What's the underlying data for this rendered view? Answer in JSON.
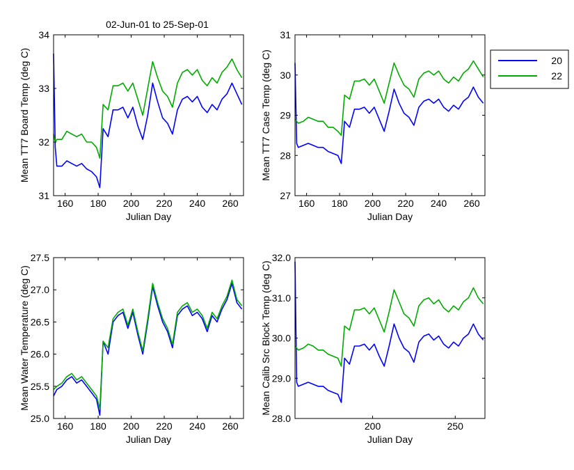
{
  "chart_data": [
    {
      "type": "line",
      "title": "02-Jun-01 to 25-Sep-01",
      "xlabel": "Julian Day",
      "ylabel": "Mean TT7 Board Temp (deg C)",
      "xlim": [
        153,
        268
      ],
      "ylim": [
        31,
        34
      ],
      "xticks": [
        "160",
        "180",
        "200",
        "220",
        "240",
        "260"
      ],
      "yticks": [
        "31",
        "32",
        "33",
        "34"
      ],
      "series": [
        {
          "name": "20",
          "color": "#0000ff",
          "x": [
            153,
            154,
            155,
            158,
            161,
            164,
            167,
            170,
            173,
            176,
            179,
            181,
            183,
            186,
            189,
            192,
            195,
            198,
            201,
            204,
            207,
            210,
            213,
            216,
            219,
            222,
            225,
            228,
            231,
            234,
            237,
            240,
            243,
            246,
            249,
            252,
            255,
            258,
            261,
            264,
            267
          ],
          "y": [
            33.65,
            31.9,
            31.55,
            31.55,
            31.65,
            31.6,
            31.55,
            31.6,
            31.5,
            31.45,
            31.35,
            31.15,
            32.25,
            32.1,
            32.6,
            32.6,
            32.65,
            32.45,
            32.65,
            32.3,
            32.05,
            32.5,
            33.1,
            32.75,
            32.45,
            32.35,
            32.15,
            32.6,
            32.8,
            32.85,
            32.75,
            32.85,
            32.65,
            32.55,
            32.7,
            32.6,
            32.8,
            32.9,
            33.1,
            32.9,
            32.7
          ]
        },
        {
          "name": "22",
          "color": "#00aa00",
          "x": [
            153,
            154,
            155,
            158,
            161,
            164,
            167,
            170,
            173,
            176,
            179,
            181,
            183,
            186,
            189,
            192,
            195,
            198,
            201,
            204,
            207,
            210,
            213,
            216,
            219,
            222,
            225,
            228,
            231,
            234,
            237,
            240,
            243,
            246,
            249,
            252,
            255,
            258,
            261,
            264,
            267
          ],
          "y": [
            32.15,
            32.0,
            32.05,
            32.05,
            32.2,
            32.15,
            32.1,
            32.15,
            32.0,
            32.0,
            31.9,
            31.7,
            32.7,
            32.6,
            33.05,
            33.05,
            33.1,
            32.95,
            33.1,
            32.8,
            32.5,
            33.0,
            33.5,
            33.2,
            32.95,
            32.85,
            32.65,
            33.1,
            33.3,
            33.35,
            33.25,
            33.35,
            33.15,
            33.05,
            33.2,
            33.1,
            33.3,
            33.4,
            33.55,
            33.35,
            33.2
          ]
        }
      ]
    },
    {
      "type": "line",
      "title": "",
      "xlabel": "Julian Day",
      "ylabel": "Mean TT7 Case Temp (deg C)",
      "xlim": [
        153,
        268
      ],
      "ylim": [
        27,
        31
      ],
      "xticks": [
        "160",
        "180",
        "200",
        "220",
        "240",
        "260"
      ],
      "yticks": [
        "27",
        "28",
        "29",
        "30",
        "31"
      ],
      "series": [
        {
          "name": "20",
          "color": "#0000ff",
          "x": [
            153,
            154,
            155,
            158,
            161,
            164,
            167,
            170,
            173,
            176,
            179,
            181,
            183,
            186,
            189,
            192,
            195,
            198,
            201,
            204,
            207,
            210,
            213,
            216,
            219,
            222,
            225,
            228,
            231,
            234,
            237,
            240,
            243,
            246,
            249,
            252,
            255,
            258,
            261,
            264,
            267
          ],
          "y": [
            30.3,
            28.3,
            28.2,
            28.25,
            28.3,
            28.25,
            28.2,
            28.2,
            28.1,
            28.05,
            28.0,
            27.8,
            28.85,
            28.7,
            29.15,
            29.15,
            29.2,
            29.05,
            29.2,
            28.9,
            28.6,
            29.1,
            29.65,
            29.3,
            29.05,
            28.95,
            28.75,
            29.2,
            29.35,
            29.4,
            29.3,
            29.4,
            29.2,
            29.1,
            29.25,
            29.15,
            29.35,
            29.45,
            29.7,
            29.45,
            29.3
          ]
        },
        {
          "name": "22",
          "color": "#00aa00",
          "x": [
            153,
            154,
            155,
            158,
            161,
            164,
            167,
            170,
            173,
            176,
            179,
            181,
            183,
            186,
            189,
            192,
            195,
            198,
            201,
            204,
            207,
            210,
            213,
            216,
            219,
            222,
            225,
            228,
            231,
            234,
            237,
            240,
            243,
            246,
            249,
            252,
            255,
            258,
            261,
            264,
            267
          ],
          "y": [
            28.9,
            28.85,
            28.8,
            28.85,
            28.95,
            28.9,
            28.85,
            28.85,
            28.7,
            28.7,
            28.6,
            28.5,
            29.5,
            29.4,
            29.85,
            29.85,
            29.9,
            29.75,
            29.9,
            29.6,
            29.3,
            29.8,
            30.3,
            30.0,
            29.75,
            29.65,
            29.45,
            29.9,
            30.05,
            30.1,
            30.0,
            30.1,
            29.9,
            29.8,
            29.95,
            29.85,
            30.05,
            30.15,
            30.35,
            30.15,
            29.95
          ]
        }
      ]
    },
    {
      "type": "line",
      "title": "",
      "xlabel": "Julian Day",
      "ylabel": "Mean Water Temperature (deg C)",
      "xlim": [
        153,
        268
      ],
      "ylim": [
        25,
        27.5
      ],
      "xticks": [
        "160",
        "180",
        "200",
        "220",
        "240",
        "260"
      ],
      "yticks": [
        "25.0",
        "25.5",
        "26.0",
        "26.5",
        "27.0",
        "27.5"
      ],
      "series": [
        {
          "name": "20",
          "color": "#0000ff",
          "x": [
            153,
            155,
            158,
            161,
            164,
            167,
            170,
            173,
            176,
            179,
            181,
            183,
            186,
            189,
            192,
            195,
            198,
            201,
            204,
            207,
            210,
            213,
            216,
            219,
            222,
            225,
            228,
            231,
            234,
            237,
            240,
            243,
            246,
            249,
            252,
            255,
            258,
            261,
            264,
            267
          ],
          "y": [
            25.35,
            25.45,
            25.5,
            25.6,
            25.65,
            25.55,
            25.6,
            25.5,
            25.4,
            25.3,
            25.05,
            26.2,
            26.0,
            26.5,
            26.6,
            26.65,
            26.4,
            26.65,
            26.3,
            26.0,
            26.5,
            27.05,
            26.75,
            26.5,
            26.35,
            26.1,
            26.6,
            26.7,
            26.75,
            26.6,
            26.65,
            26.55,
            26.35,
            26.6,
            26.5,
            26.7,
            26.85,
            27.1,
            26.8,
            26.7
          ]
        },
        {
          "name": "22",
          "color": "#00aa00",
          "x": [
            153,
            155,
            158,
            161,
            164,
            167,
            170,
            173,
            176,
            179,
            181,
            183,
            186,
            189,
            192,
            195,
            198,
            201,
            204,
            207,
            210,
            213,
            216,
            219,
            222,
            225,
            228,
            231,
            234,
            237,
            240,
            243,
            246,
            249,
            252,
            255,
            258,
            261,
            264,
            267
          ],
          "y": [
            25.45,
            25.5,
            25.55,
            25.65,
            25.7,
            25.6,
            25.65,
            25.55,
            25.45,
            25.35,
            25.15,
            26.2,
            26.1,
            26.55,
            26.65,
            26.7,
            26.45,
            26.7,
            26.35,
            26.05,
            26.55,
            27.1,
            26.8,
            26.55,
            26.4,
            26.15,
            26.65,
            26.75,
            26.8,
            26.65,
            26.7,
            26.6,
            26.4,
            26.65,
            26.55,
            26.75,
            26.9,
            27.15,
            26.85,
            26.75
          ]
        }
      ]
    },
    {
      "type": "line",
      "title": "",
      "xlabel": "Julian Day",
      "ylabel": "Mean Calib Src Block Temp (deg C)",
      "xlim": [
        153,
        268
      ],
      "ylim": [
        28,
        32
      ],
      "xticks": [
        "200",
        "250"
      ],
      "yticks": [
        "28.0",
        "29.0",
        "30.0",
        "31.0",
        "32.0"
      ],
      "series": [
        {
          "name": "20",
          "color": "#0000ff",
          "x": [
            153,
            154,
            155,
            158,
            161,
            164,
            167,
            170,
            173,
            176,
            179,
            181,
            183,
            186,
            189,
            192,
            195,
            198,
            201,
            204,
            207,
            210,
            213,
            216,
            219,
            222,
            225,
            228,
            231,
            234,
            237,
            240,
            243,
            246,
            249,
            252,
            255,
            258,
            261,
            264,
            267
          ],
          "y": [
            31.9,
            28.9,
            28.8,
            28.85,
            28.9,
            28.85,
            28.8,
            28.8,
            28.7,
            28.65,
            28.6,
            28.4,
            29.5,
            29.35,
            29.8,
            29.8,
            29.85,
            29.7,
            29.85,
            29.55,
            29.3,
            29.8,
            30.35,
            30.0,
            29.75,
            29.65,
            29.4,
            29.9,
            30.05,
            30.1,
            29.95,
            30.05,
            29.85,
            29.75,
            29.9,
            29.8,
            30.0,
            30.1,
            30.35,
            30.1,
            29.95
          ]
        },
        {
          "name": "22",
          "color": "#00aa00",
          "x": [
            153,
            154,
            155,
            158,
            161,
            164,
            167,
            170,
            173,
            176,
            179,
            181,
            183,
            186,
            189,
            192,
            195,
            198,
            201,
            204,
            207,
            210,
            213,
            216,
            219,
            222,
            225,
            228,
            231,
            234,
            237,
            240,
            243,
            246,
            249,
            252,
            255,
            258,
            261,
            264,
            267
          ],
          "y": [
            29.8,
            29.75,
            29.7,
            29.75,
            29.85,
            29.8,
            29.7,
            29.7,
            29.6,
            29.55,
            29.5,
            29.3,
            30.3,
            30.2,
            30.7,
            30.7,
            30.75,
            30.6,
            30.75,
            30.45,
            30.15,
            30.65,
            31.2,
            30.9,
            30.6,
            30.5,
            30.3,
            30.8,
            30.95,
            31.0,
            30.85,
            30.95,
            30.75,
            30.65,
            30.8,
            30.7,
            30.9,
            31.0,
            31.25,
            31.0,
            30.85
          ]
        }
      ]
    }
  ],
  "legend": {
    "placement": "top-right",
    "entries": [
      {
        "label": "20",
        "color": "#0000ff"
      },
      {
        "label": "22",
        "color": "#00aa00"
      }
    ]
  }
}
